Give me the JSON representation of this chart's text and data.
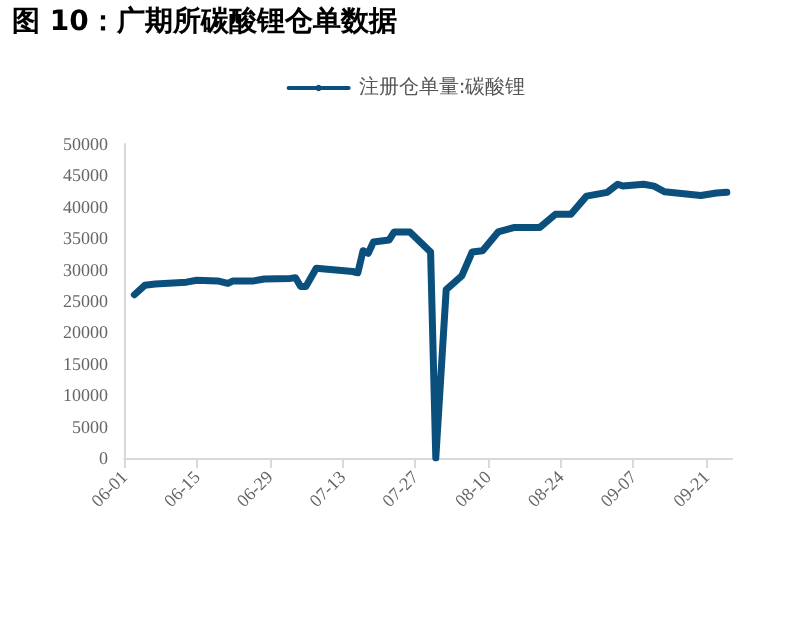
{
  "chart_data": {
    "type": "line",
    "title": "图 10：广期所碳酸锂仓单数据",
    "x": [
      "--06-03",
      "--06-05",
      "--06-07",
      "--06-13",
      "--06-15",
      "--06-19",
      "--06-21",
      "--06-22",
      "--06-26",
      "--06-28",
      "--07-03",
      "--07-04",
      "--07-05",
      "--07-06",
      "--07-08",
      "--07-15",
      "--07-16",
      "--07-17",
      "--07-18",
      "--07-19",
      "--07-22",
      "--07-23",
      "--07-26",
      "--07-30",
      "--07-31",
      "--08-02",
      "--08-05",
      "--08-07",
      "--08-09",
      "--08-12",
      "--08-15",
      "--08-20",
      "--08-23",
      "--08-26",
      "--08-29",
      "--09-02",
      "--09-04",
      "--09-05",
      "--09-09",
      "--09-11",
      "--09-13",
      "--09-20",
      "--09-23",
      "--09-25"
    ],
    "series": [
      {
        "name": "注册仓单量:碳酸锂",
        "color": "#0b4f7d",
        "values": [
          26000,
          27500,
          27700,
          28000,
          28300,
          28200,
          27800,
          28200,
          28200,
          28500,
          28600,
          28700,
          27300,
          27300,
          30200,
          29700,
          29500,
          33000,
          32600,
          34400,
          34700,
          36000,
          36000,
          32800,
          0,
          26800,
          29000,
          32800,
          33000,
          36000,
          36700,
          36700,
          38800,
          38800,
          41700,
          42300,
          43600,
          43300,
          43600,
          43300,
          42400,
          41800,
          42200,
          42300
        ]
      }
    ],
    "xlim": [
      "--06-01",
      "--09-26"
    ],
    "xticks": [
      {
        "value": "--06-01",
        "label": "06-01"
      },
      {
        "value": "--06-15",
        "label": "06-15"
      },
      {
        "value": "--06-29",
        "label": "06-29"
      },
      {
        "value": "--07-13",
        "label": "07-13"
      },
      {
        "value": "--07-27",
        "label": "07-27"
      },
      {
        "value": "--08-10",
        "label": "08-10"
      },
      {
        "value": "--08-24",
        "label": "08-24"
      },
      {
        "value": "--09-07",
        "label": "09-07"
      },
      {
        "value": "--09-21",
        "label": "09-21"
      }
    ],
    "ylim": [
      0,
      50000
    ],
    "yticks": [
      0,
      5000,
      10000,
      15000,
      20000,
      25000,
      30000,
      35000,
      40000,
      45000,
      50000
    ],
    "grid": false,
    "legend": "top",
    "marker": "none",
    "line_style": "solid"
  }
}
